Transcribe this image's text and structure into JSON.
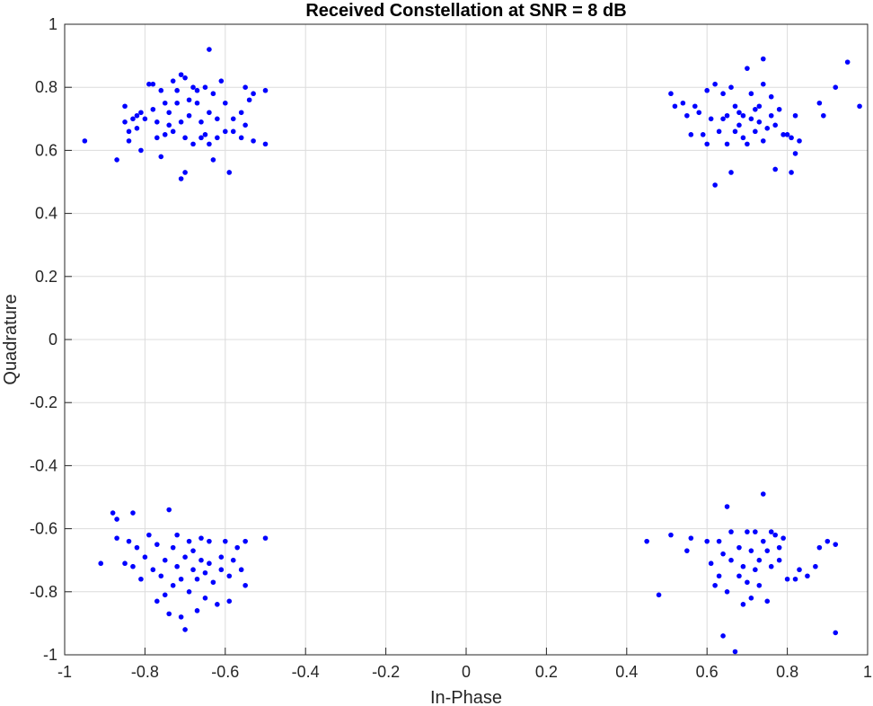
{
  "chart_data": {
    "type": "scatter",
    "title": "Received Constellation at SNR = 8 dB",
    "xlabel": "In-Phase",
    "ylabel": "Quadrature",
    "xlim": [
      -1,
      1
    ],
    "ylim": [
      -1,
      1
    ],
    "x_ticks": [
      -1,
      -0.8,
      -0.6,
      -0.4,
      -0.2,
      0,
      0.2,
      0.4,
      0.6,
      0.8,
      1
    ],
    "y_ticks": [
      -1,
      -0.8,
      -0.6,
      -0.4,
      -0.2,
      0,
      0.2,
      0.4,
      0.6,
      0.8,
      1
    ],
    "x_tick_labels": [
      "-1",
      "-0.8",
      "-0.6",
      "-0.4",
      "-0.2",
      "0",
      "0.2",
      "0.4",
      "0.6",
      "0.8",
      "1"
    ],
    "y_tick_labels": [
      "-1",
      "-0.8",
      "-0.6",
      "-0.4",
      "-0.2",
      "0",
      "0.2",
      "0.4",
      "0.6",
      "0.8",
      "1"
    ],
    "grid": true,
    "marker_color": "#0000ff",
    "series": [
      {
        "points": [
          [
            -0.95,
            0.63
          ],
          [
            -0.87,
            0.57
          ],
          [
            -0.85,
            0.74
          ],
          [
            -0.85,
            0.69
          ],
          [
            -0.84,
            0.66
          ],
          [
            -0.84,
            0.63
          ],
          [
            -0.83,
            0.7
          ],
          [
            -0.82,
            0.71
          ],
          [
            -0.82,
            0.67
          ],
          [
            -0.81,
            0.6
          ],
          [
            -0.81,
            0.72
          ],
          [
            -0.8,
            0.7
          ],
          [
            -0.79,
            0.81
          ],
          [
            -0.78,
            0.81
          ],
          [
            -0.78,
            0.73
          ],
          [
            -0.77,
            0.64
          ],
          [
            -0.77,
            0.69
          ],
          [
            -0.76,
            0.79
          ],
          [
            -0.76,
            0.58
          ],
          [
            -0.75,
            0.65
          ],
          [
            -0.75,
            0.75
          ],
          [
            -0.74,
            0.68
          ],
          [
            -0.74,
            0.72
          ],
          [
            -0.73,
            0.82
          ],
          [
            -0.73,
            0.66
          ],
          [
            -0.72,
            0.79
          ],
          [
            -0.72,
            0.75
          ],
          [
            -0.71,
            0.84
          ],
          [
            -0.71,
            0.69
          ],
          [
            -0.71,
            0.51
          ],
          [
            -0.7,
            0.83
          ],
          [
            -0.7,
            0.53
          ],
          [
            -0.7,
            0.64
          ],
          [
            -0.69,
            0.76
          ],
          [
            -0.69,
            0.71
          ],
          [
            -0.68,
            0.8
          ],
          [
            -0.68,
            0.62
          ],
          [
            -0.67,
            0.79
          ],
          [
            -0.67,
            0.75
          ],
          [
            -0.66,
            0.69
          ],
          [
            -0.66,
            0.64
          ],
          [
            -0.65,
            0.8
          ],
          [
            -0.65,
            0.65
          ],
          [
            -0.64,
            0.92
          ],
          [
            -0.64,
            0.72
          ],
          [
            -0.64,
            0.62
          ],
          [
            -0.63,
            0.78
          ],
          [
            -0.63,
            0.57
          ],
          [
            -0.62,
            0.64
          ],
          [
            -0.62,
            0.7
          ],
          [
            -0.61,
            0.82
          ],
          [
            -0.6,
            0.75
          ],
          [
            -0.6,
            0.66
          ],
          [
            -0.59,
            0.53
          ],
          [
            -0.58,
            0.66
          ],
          [
            -0.58,
            0.7
          ],
          [
            -0.56,
            0.72
          ],
          [
            -0.56,
            0.64
          ],
          [
            -0.55,
            0.8
          ],
          [
            -0.55,
            0.68
          ],
          [
            -0.54,
            0.76
          ],
          [
            -0.53,
            0.63
          ],
          [
            -0.53,
            0.78
          ],
          [
            -0.5,
            0.79
          ],
          [
            -0.5,
            0.62
          ],
          [
            0.51,
            0.78
          ],
          [
            0.52,
            0.74
          ],
          [
            0.54,
            0.75
          ],
          [
            0.55,
            0.71
          ],
          [
            0.56,
            0.65
          ],
          [
            0.57,
            0.74
          ],
          [
            0.58,
            0.72
          ],
          [
            0.59,
            0.65
          ],
          [
            0.6,
            0.62
          ],
          [
            0.6,
            0.79
          ],
          [
            0.61,
            0.7
          ],
          [
            0.62,
            0.81
          ],
          [
            0.62,
            0.49
          ],
          [
            0.63,
            0.66
          ],
          [
            0.64,
            0.7
          ],
          [
            0.64,
            0.78
          ],
          [
            0.65,
            0.62
          ],
          [
            0.65,
            0.71
          ],
          [
            0.66,
            0.8
          ],
          [
            0.66,
            0.53
          ],
          [
            0.67,
            0.74
          ],
          [
            0.67,
            0.66
          ],
          [
            0.68,
            0.68
          ],
          [
            0.68,
            0.72
          ],
          [
            0.69,
            0.64
          ],
          [
            0.69,
            0.71
          ],
          [
            0.7,
            0.86
          ],
          [
            0.7,
            0.62
          ],
          [
            0.71,
            0.7
          ],
          [
            0.71,
            0.78
          ],
          [
            0.72,
            0.66
          ],
          [
            0.72,
            0.73
          ],
          [
            0.73,
            0.69
          ],
          [
            0.73,
            0.74
          ],
          [
            0.74,
            0.81
          ],
          [
            0.74,
            0.89
          ],
          [
            0.74,
            0.63
          ],
          [
            0.75,
            0.67
          ],
          [
            0.76,
            0.71
          ],
          [
            0.76,
            0.77
          ],
          [
            0.77,
            0.54
          ],
          [
            0.77,
            0.68
          ],
          [
            0.78,
            0.73
          ],
          [
            0.79,
            0.65
          ],
          [
            0.8,
            0.65
          ],
          [
            0.81,
            0.53
          ],
          [
            0.81,
            0.64
          ],
          [
            0.82,
            0.71
          ],
          [
            0.82,
            0.59
          ],
          [
            0.83,
            0.63
          ],
          [
            0.88,
            0.75
          ],
          [
            0.89,
            0.71
          ],
          [
            0.92,
            0.8
          ],
          [
            0.95,
            0.88
          ],
          [
            0.98,
            0.74
          ],
          [
            -0.91,
            -0.71
          ],
          [
            -0.88,
            -0.55
          ],
          [
            -0.87,
            -0.63
          ],
          [
            -0.87,
            -0.57
          ],
          [
            -0.85,
            -0.71
          ],
          [
            -0.84,
            -0.64
          ],
          [
            -0.83,
            -0.55
          ],
          [
            -0.83,
            -0.72
          ],
          [
            -0.82,
            -0.66
          ],
          [
            -0.81,
            -0.76
          ],
          [
            -0.8,
            -0.69
          ],
          [
            -0.79,
            -0.62
          ],
          [
            -0.78,
            -0.73
          ],
          [
            -0.77,
            -0.83
          ],
          [
            -0.77,
            -0.65
          ],
          [
            -0.76,
            -0.75
          ],
          [
            -0.75,
            -0.81
          ],
          [
            -0.75,
            -0.7
          ],
          [
            -0.74,
            -0.54
          ],
          [
            -0.74,
            -0.87
          ],
          [
            -0.73,
            -0.66
          ],
          [
            -0.73,
            -0.78
          ],
          [
            -0.72,
            -0.62
          ],
          [
            -0.72,
            -0.72
          ],
          [
            -0.71,
            -0.76
          ],
          [
            -0.71,
            -0.88
          ],
          [
            -0.7,
            -0.69
          ],
          [
            -0.7,
            -0.92
          ],
          [
            -0.69,
            -0.64
          ],
          [
            -0.69,
            -0.8
          ],
          [
            -0.68,
            -0.73
          ],
          [
            -0.68,
            -0.67
          ],
          [
            -0.67,
            -0.76
          ],
          [
            -0.67,
            -0.86
          ],
          [
            -0.66,
            -0.7
          ],
          [
            -0.66,
            -0.63
          ],
          [
            -0.65,
            -0.74
          ],
          [
            -0.65,
            -0.82
          ],
          [
            -0.64,
            -0.64
          ],
          [
            -0.64,
            -0.71
          ],
          [
            -0.63,
            -0.77
          ],
          [
            -0.62,
            -0.84
          ],
          [
            -0.61,
            -0.69
          ],
          [
            -0.61,
            -0.73
          ],
          [
            -0.6,
            -0.64
          ],
          [
            -0.59,
            -0.83
          ],
          [
            -0.59,
            -0.75
          ],
          [
            -0.58,
            -0.7
          ],
          [
            -0.57,
            -0.66
          ],
          [
            -0.56,
            -0.73
          ],
          [
            -0.55,
            -0.64
          ],
          [
            -0.55,
            -0.78
          ],
          [
            -0.5,
            -0.63
          ],
          [
            0.45,
            -0.64
          ],
          [
            0.48,
            -0.81
          ],
          [
            0.51,
            -0.62
          ],
          [
            0.55,
            -0.67
          ],
          [
            0.56,
            -0.63
          ],
          [
            0.6,
            -0.64
          ],
          [
            0.61,
            -0.71
          ],
          [
            0.62,
            -0.78
          ],
          [
            0.63,
            -0.64
          ],
          [
            0.63,
            -0.75
          ],
          [
            0.64,
            -0.68
          ],
          [
            0.64,
            -0.94
          ],
          [
            0.65,
            -0.8
          ],
          [
            0.65,
            -0.53
          ],
          [
            0.66,
            -0.7
          ],
          [
            0.66,
            -0.61
          ],
          [
            0.67,
            -0.99
          ],
          [
            0.68,
            -0.75
          ],
          [
            0.68,
            -0.66
          ],
          [
            0.69,
            -0.84
          ],
          [
            0.69,
            -0.72
          ],
          [
            0.7,
            -0.61
          ],
          [
            0.7,
            -0.77
          ],
          [
            0.71,
            -0.67
          ],
          [
            0.71,
            -0.82
          ],
          [
            0.72,
            -0.73
          ],
          [
            0.72,
            -0.61
          ],
          [
            0.73,
            -0.7
          ],
          [
            0.73,
            -0.78
          ],
          [
            0.74,
            -0.49
          ],
          [
            0.74,
            -0.64
          ],
          [
            0.75,
            -0.67
          ],
          [
            0.75,
            -0.83
          ],
          [
            0.76,
            -0.61
          ],
          [
            0.76,
            -0.72
          ],
          [
            0.77,
            -0.62
          ],
          [
            0.78,
            -0.66
          ],
          [
            0.78,
            -0.7
          ],
          [
            0.79,
            -0.63
          ],
          [
            0.8,
            -0.76
          ],
          [
            0.82,
            -0.76
          ],
          [
            0.83,
            -0.73
          ],
          [
            0.85,
            -0.75
          ],
          [
            0.87,
            -0.72
          ],
          [
            0.88,
            -0.66
          ],
          [
            0.9,
            -0.64
          ],
          [
            0.92,
            -0.65
          ],
          [
            0.92,
            -0.93
          ]
        ]
      }
    ]
  }
}
